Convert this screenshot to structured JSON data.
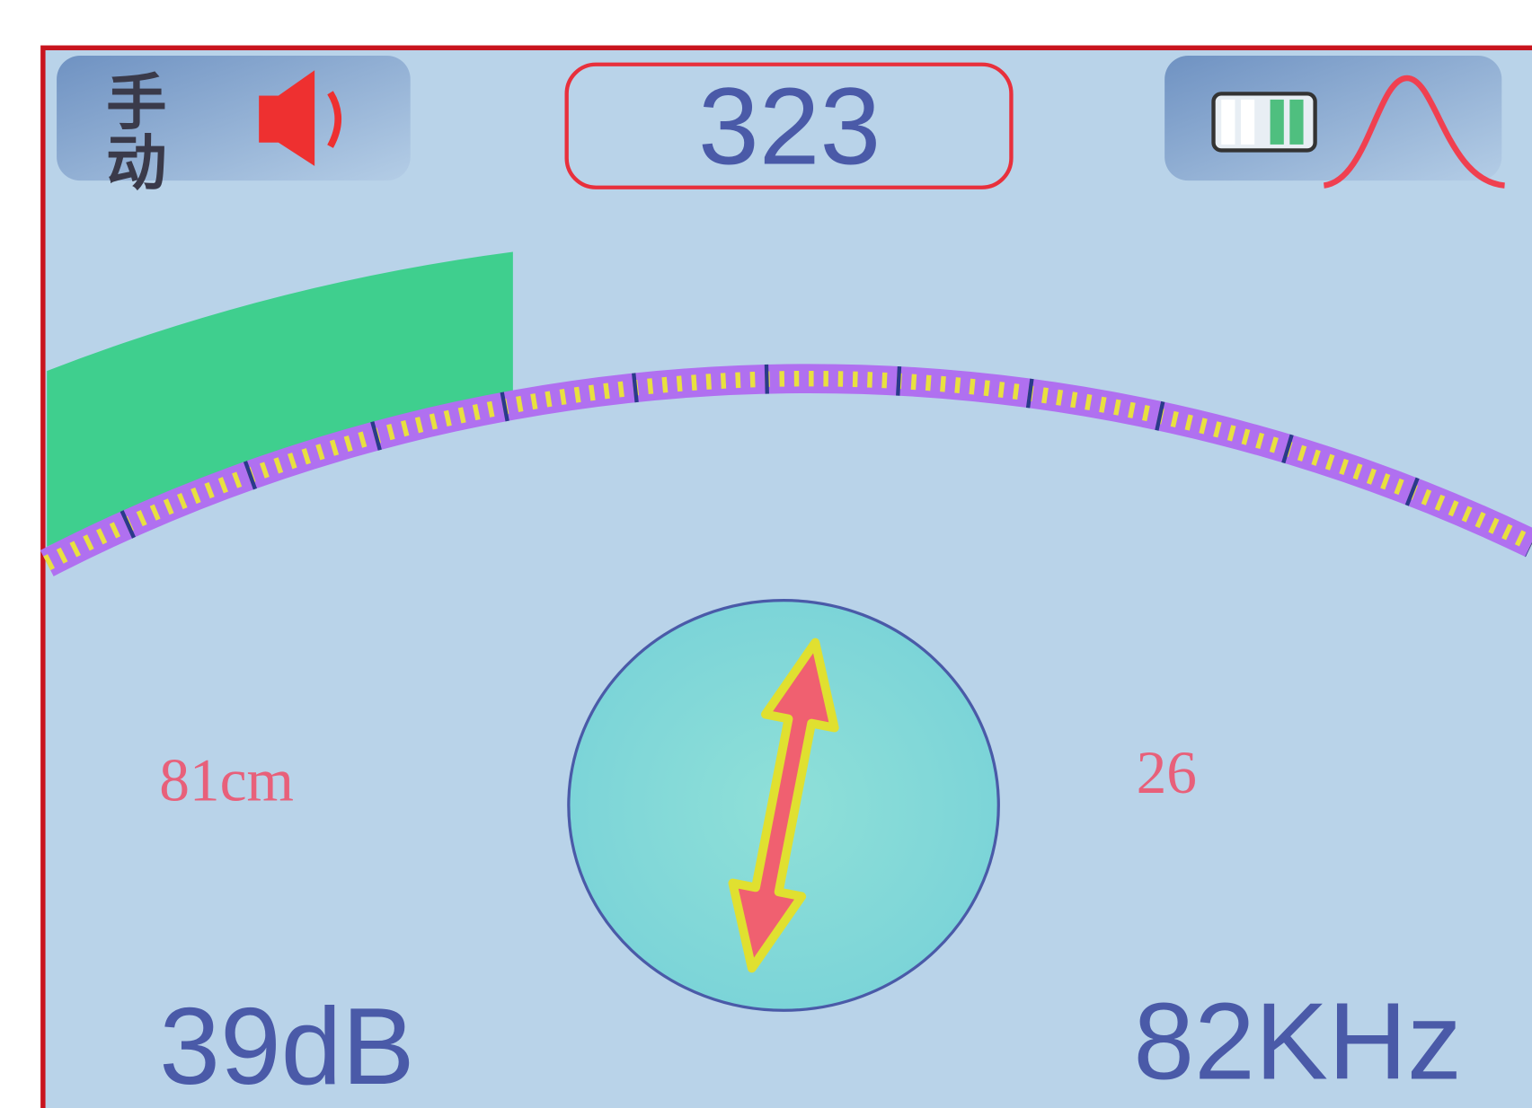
{
  "mode": "手动",
  "reading": "323",
  "depth": "81cm",
  "current": "26",
  "gain": "39dB",
  "frequency": "82KHz"
}
